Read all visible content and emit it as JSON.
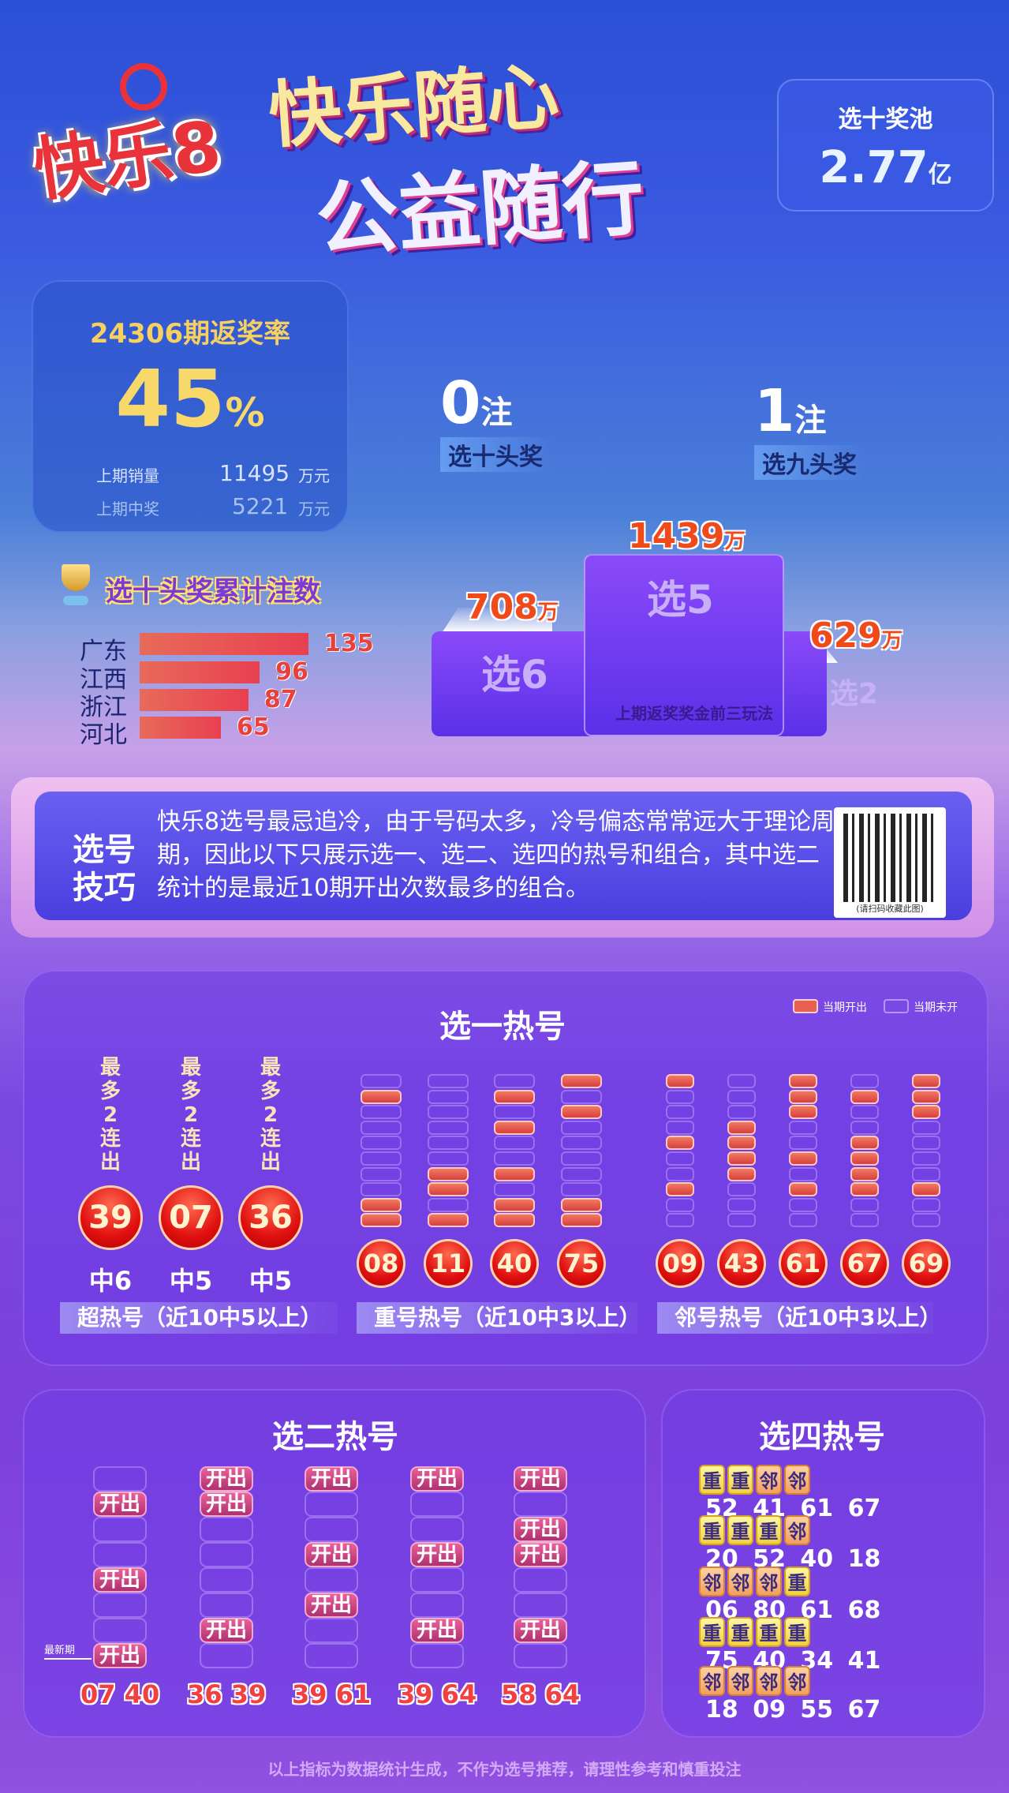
{
  "header": {
    "logo_text": "快乐8",
    "banner_line1": "快乐随心",
    "banner_line2": "公益随行",
    "pool_label": "选十奖池",
    "pool_value": "2.77",
    "pool_unit": "亿"
  },
  "stats": {
    "title": "24306期返奖率",
    "rate": "45",
    "rate_unit": "%",
    "sales_label": "上期销量",
    "sales_value": "11495",
    "sales_unit": "万元",
    "prize_label": "上期中奖",
    "prize_value": "5221",
    "prize_unit": "万元"
  },
  "jackpots": [
    {
      "count": "0",
      "unit": "注",
      "label": "选十头奖"
    },
    {
      "count": "1",
      "unit": "注",
      "label": "选九头奖"
    }
  ],
  "chart_data": {
    "type": "bar",
    "title": "选十头奖累计注数",
    "categories": [
      "广东",
      "江西",
      "浙江",
      "河北"
    ],
    "values": [
      135,
      96,
      87,
      65
    ],
    "orientation": "horizontal",
    "bar_color": "#e84a50"
  },
  "podium": {
    "caption": "上期返奖奖金前三玩法",
    "items": [
      {
        "name": "选6",
        "value": "708",
        "unit": "万"
      },
      {
        "name": "选5",
        "value": "1439",
        "unit": "万"
      },
      {
        "name": "选2",
        "value": "629",
        "unit": "万"
      }
    ]
  },
  "tips": {
    "heading_line1": "选号",
    "heading_line2": "技巧",
    "body": "快乐8选号最忌追冷，由于号码太多，冷号偏态常常远大于理论周期，因此以下只展示选一、选二、选四的热号和组合，其中选二统计的是最近10期开出次数最多的组合。",
    "qr_caption": "(请扫码收藏此图)"
  },
  "pick1": {
    "title": "选一热号",
    "legend_drawn": "当期开出",
    "legend_not_drawn": "当期未开",
    "super_hot": [
      {
        "note": "最多2连出",
        "number": "39",
        "hits": "中6"
      },
      {
        "note": "最多2连出",
        "number": "07",
        "hits": "中5"
      },
      {
        "note": "最多2连出",
        "number": "36",
        "hits": "中5"
      }
    ],
    "repeat_hot": [
      {
        "number": "08",
        "draws": [
          0,
          1,
          0,
          0,
          0,
          0,
          0,
          0,
          1,
          1
        ]
      },
      {
        "number": "11",
        "draws": [
          0,
          0,
          0,
          0,
          0,
          0,
          1,
          1,
          0,
          1
        ]
      },
      {
        "number": "40",
        "draws": [
          0,
          1,
          0,
          1,
          0,
          0,
          1,
          0,
          1,
          1
        ]
      },
      {
        "number": "75",
        "draws": [
          1,
          0,
          1,
          0,
          0,
          0,
          0,
          0,
          1,
          1
        ]
      }
    ],
    "neighbor_hot": [
      {
        "number": "09",
        "draws": [
          1,
          0,
          0,
          0,
          1,
          0,
          0,
          1,
          0,
          0
        ]
      },
      {
        "number": "43",
        "draws": [
          0,
          0,
          0,
          1,
          1,
          1,
          1,
          0,
          0,
          0
        ]
      },
      {
        "number": "61",
        "draws": [
          1,
          1,
          1,
          0,
          0,
          1,
          0,
          1,
          0,
          0
        ]
      },
      {
        "number": "67",
        "draws": [
          0,
          1,
          0,
          0,
          1,
          1,
          1,
          1,
          0,
          0
        ]
      },
      {
        "number": "69",
        "draws": [
          1,
          1,
          1,
          0,
          0,
          0,
          0,
          1,
          0,
          0
        ]
      }
    ],
    "bands": [
      "超热号（近10中5以上）",
      "重号热号（近10中3以上）",
      "邻号热号（近10中3以上）"
    ]
  },
  "pick2": {
    "title": "选二热号",
    "cell_label": "开出",
    "latest_label": "最新期",
    "pairs": [
      {
        "pair": "07 40",
        "draws": [
          0,
          1,
          0,
          0,
          1,
          0,
          0,
          1
        ]
      },
      {
        "pair": "36 39",
        "draws": [
          1,
          1,
          0,
          0,
          0,
          0,
          1,
          0
        ]
      },
      {
        "pair": "39 61",
        "draws": [
          1,
          0,
          0,
          1,
          0,
          1,
          0,
          0
        ]
      },
      {
        "pair": "39 64",
        "draws": [
          1,
          0,
          0,
          1,
          0,
          0,
          1,
          0
        ]
      },
      {
        "pair": "58 64",
        "draws": [
          1,
          0,
          1,
          1,
          0,
          0,
          1,
          0
        ]
      }
    ]
  },
  "pick4": {
    "title": "选四热号",
    "rows": [
      {
        "tags": [
          "重",
          "重",
          "邻",
          "邻"
        ],
        "numbers": "52 41 61 67"
      },
      {
        "tags": [
          "重",
          "重",
          "重",
          "邻"
        ],
        "numbers": "20 52 40 18"
      },
      {
        "tags": [
          "邻",
          "邻",
          "邻",
          "重"
        ],
        "numbers": "06 80 61 68"
      },
      {
        "tags": [
          "重",
          "重",
          "重",
          "重"
        ],
        "numbers": "75 40 34 41"
      },
      {
        "tags": [
          "邻",
          "邻",
          "邻",
          "邻"
        ],
        "numbers": "18 09 55 67"
      }
    ]
  },
  "footer": "以上指标为数据统计生成，不作为选号推荐，请理性参考和慎重投注"
}
